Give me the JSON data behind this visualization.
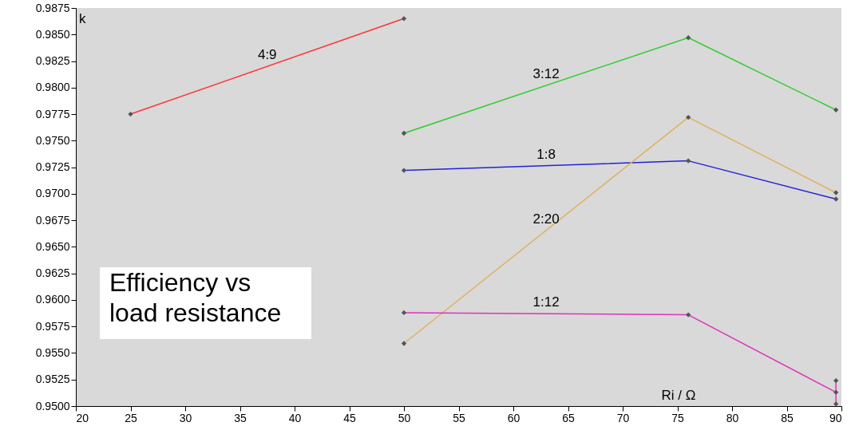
{
  "chart_data": {
    "type": "line",
    "title": "Efficiency vs\nload resistance",
    "xlabel": "Ri / Ω",
    "ylabel": "k",
    "xlim": [
      20,
      90
    ],
    "xticks": [
      20,
      25,
      30,
      35,
      40,
      45,
      50,
      55,
      60,
      65,
      70,
      75,
      80,
      85,
      90
    ],
    "ylim": [
      0.95,
      0.9875
    ],
    "yticks": [
      {
        "value": 0.95,
        "label": "0.9500"
      },
      {
        "value": 0.9525,
        "label": "0.9525"
      },
      {
        "value": 0.955,
        "label": "0.9550"
      },
      {
        "value": 0.9575,
        "label": "0.9575"
      },
      {
        "value": 0.96,
        "label": "0.9600"
      },
      {
        "value": 0.9625,
        "label": "0.9625"
      },
      {
        "value": 0.965,
        "label": "0.9650"
      },
      {
        "value": 0.9675,
        "label": "0.9675"
      },
      {
        "value": 0.97,
        "label": "0.9700"
      },
      {
        "value": 0.9725,
        "label": "0.9725"
      },
      {
        "value": 0.975,
        "label": "0.9750"
      },
      {
        "value": 0.9775,
        "label": "0.9775"
      },
      {
        "value": 0.98,
        "label": "0.9800"
      },
      {
        "value": 0.9825,
        "label": "0.9825"
      },
      {
        "value": 0.985,
        "label": "0.9850"
      },
      {
        "value": 0.9875,
        "label": "0.9875"
      }
    ],
    "grid": false,
    "marker": "diamond",
    "line_style": "solid",
    "series": [
      {
        "name": "4:9",
        "color": "#ff3333",
        "x": [
          25,
          50
        ],
        "values": [
          0.9775,
          0.9865
        ]
      },
      {
        "name": "3:12",
        "color": "#33cc33",
        "x": [
          50,
          76,
          89.5
        ],
        "values": [
          0.9757,
          0.9847,
          0.9779
        ]
      },
      {
        "name": "1:8",
        "color": "#2222dd",
        "x": [
          50,
          76,
          89.5
        ],
        "values": [
          0.9722,
          0.9731,
          0.9695
        ]
      },
      {
        "name": "2:20",
        "color": "#e0b060",
        "x": [
          50,
          76,
          89.5
        ],
        "values": [
          0.9559,
          0.9772,
          0.9701
        ]
      },
      {
        "name": "1:12",
        "color": "#dd33bb",
        "x": [
          50,
          76,
          89.5,
          89.5,
          89.5
        ],
        "values": [
          0.9588,
          0.9586,
          0.9513,
          0.9524,
          0.9502
        ]
      }
    ]
  }
}
